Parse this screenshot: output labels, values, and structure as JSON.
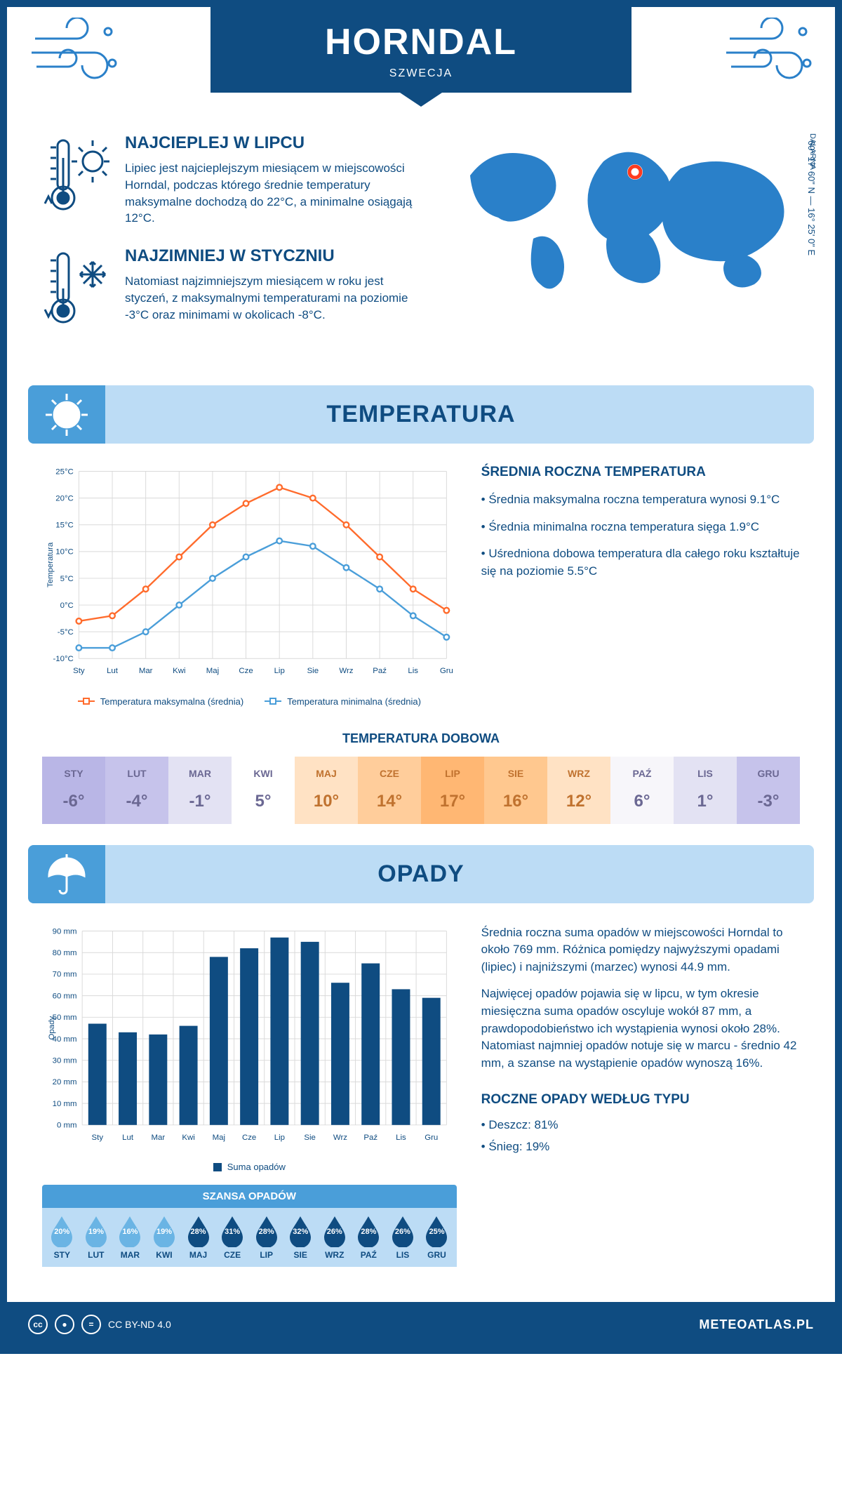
{
  "header": {
    "title": "HORNDAL",
    "subtitle": "SZWECJA",
    "coords": "60° 17' 60\" N — 16° 25' 0\" E",
    "region": "DALARNA"
  },
  "facts": {
    "warm": {
      "title": "NAJCIEPLEJ W LIPCU",
      "desc": "Lipiec jest najcieplejszym miesiącem w miejscowości Horndal, podczas którego średnie temperatury maksymalne dochodzą do 22°C, a minimalne osiągają 12°C."
    },
    "cold": {
      "title": "NAJZIMNIEJ W STYCZNIU",
      "desc": "Natomiast najzimniejszym miesiącem w roku jest styczeń, z maksymalnymi temperaturami na poziomie -3°C oraz minimami w okolicach -8°C."
    }
  },
  "temperature": {
    "band_title": "TEMPERATURA",
    "chart": {
      "type": "line",
      "months": [
        "Sty",
        "Lut",
        "Mar",
        "Kwi",
        "Maj",
        "Cze",
        "Lip",
        "Sie",
        "Wrz",
        "Paź",
        "Lis",
        "Gru"
      ],
      "series": [
        {
          "name": "Temperatura maksymalna (średnia)",
          "values": [
            -3,
            -2,
            3,
            9,
            15,
            19,
            22,
            20,
            15,
            9,
            3,
            -1
          ],
          "color": "#ff6b2c"
        },
        {
          "name": "Temperatura minimalna (średnia)",
          "values": [
            -8,
            -8,
            -5,
            0,
            5,
            9,
            12,
            11,
            7,
            3,
            -2,
            -6
          ],
          "color": "#4a9ed9"
        }
      ],
      "ylim": [
        -10,
        25
      ],
      "ystep": 5,
      "yunit": "°C",
      "ylabel": "Temperatura",
      "grid_color": "#d9d9d9",
      "background": "#ffffff",
      "label_fontsize": 12
    },
    "annual": {
      "title": "ŚREDNIA ROCZNA TEMPERATURA",
      "bullets": [
        "Średnia maksymalna roczna temperatura wynosi 9.1°C",
        "Średnia minimalna roczna temperatura sięga 1.9°C",
        "Uśredniona dobowa temperatura dla całego roku kształtuje się na poziomie 5.5°C"
      ]
    },
    "daily": {
      "title": "TEMPERATURA DOBOWA",
      "months": [
        "STY",
        "LUT",
        "MAR",
        "KWI",
        "MAJ",
        "CZE",
        "LIP",
        "SIE",
        "WRZ",
        "PAŹ",
        "LIS",
        "GRU"
      ],
      "values": [
        "-6°",
        "-4°",
        "-1°",
        "5°",
        "10°",
        "14°",
        "17°",
        "16°",
        "12°",
        "6°",
        "1°",
        "-3°"
      ],
      "bg_colors": [
        "#b9b6e6",
        "#c6c3eb",
        "#e3e2f3",
        "#ffffff",
        "#ffe2c4",
        "#ffcd9b",
        "#ffb773",
        "#ffc88f",
        "#ffe2c4",
        "#f7f6fa",
        "#e3e2f3",
        "#c6c3eb"
      ],
      "text_color": "#6b6893",
      "warm_text_color": "#c0722f"
    }
  },
  "precip": {
    "band_title": "OPADY",
    "chart": {
      "type": "bar",
      "months": [
        "Sty",
        "Lut",
        "Mar",
        "Kwi",
        "Maj",
        "Cze",
        "Lip",
        "Sie",
        "Wrz",
        "Paź",
        "Lis",
        "Gru"
      ],
      "values": [
        47,
        43,
        42,
        46,
        78,
        82,
        87,
        85,
        66,
        75,
        63,
        59
      ],
      "color": "#0f4c81",
      "ylim": [
        0,
        90
      ],
      "ystep": 10,
      "yunit": " mm",
      "ylabel": "Opady",
      "grid_color": "#d9d9d9",
      "legend": "Suma opadów",
      "bar_width": 0.6
    },
    "desc1": "Średnia roczna suma opadów w miejscowości Horndal to około 769 mm. Różnica pomiędzy najwyższymi opadami (lipiec) i najniższymi (marzec) wynosi 44.9 mm.",
    "desc2": "Najwięcej opadów pojawia się w lipcu, w tym okresie miesięczna suma opadów oscyluje wokół 87 mm, a prawdopodobieństwo ich wystąpienia wynosi około 28%. Natomiast najmniej opadów notuje się w marcu - średnio 42 mm, a szanse na wystąpienie opadów wynoszą 16%.",
    "chance": {
      "title": "SZANSA OPADÓW",
      "months": [
        "STY",
        "LUT",
        "MAR",
        "KWI",
        "MAJ",
        "CZE",
        "LIP",
        "SIE",
        "WRZ",
        "PAŹ",
        "LIS",
        "GRU"
      ],
      "values": [
        "20%",
        "19%",
        "16%",
        "19%",
        "28%",
        "31%",
        "28%",
        "32%",
        "26%",
        "28%",
        "26%",
        "25%"
      ],
      "drop_colors": [
        "#6ab4e4",
        "#6ab4e4",
        "#6ab4e4",
        "#6ab4e4",
        "#0f4c81",
        "#0f4c81",
        "#0f4c81",
        "#0f4c81",
        "#0f4c81",
        "#0f4c81",
        "#0f4c81",
        "#0f4c81"
      ]
    },
    "types": {
      "title": "ROCZNE OPADY WEDŁUG TYPU",
      "bullets": [
        "Deszcz: 81%",
        "Śnieg: 19%"
      ]
    }
  },
  "footer": {
    "license": "CC BY-ND 4.0",
    "site": "METEOATLAS.PL"
  },
  "colors": {
    "brand": "#0f4c81",
    "light_blue": "#bcdcf5",
    "mid_blue": "#4a9ed9",
    "accent": "#2a80c9"
  }
}
